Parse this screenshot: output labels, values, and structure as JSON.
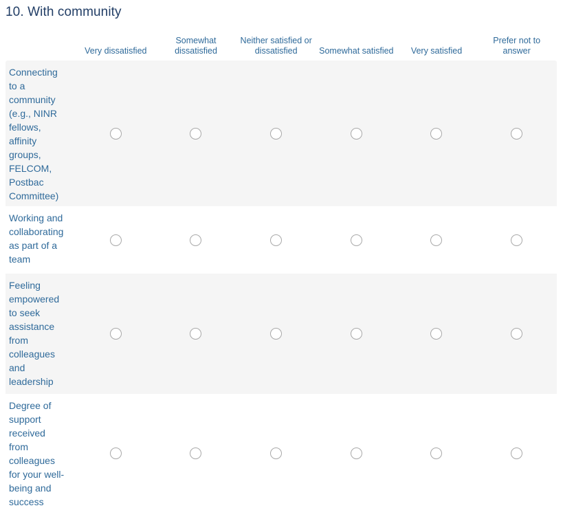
{
  "page": {
    "title": "10. With community"
  },
  "colors": {
    "page_bg": "#ffffff",
    "title_text": "#223e66",
    "cell_text": "#2f6a9a",
    "row_alt_bg": "#f5f5f5",
    "radio_border": "#a8a8a8",
    "radio_fill": "#ffffff"
  },
  "table": {
    "columns": [
      {
        "label": "Very dissatisfied"
      },
      {
        "label": "Somewhat\ndissatisfied"
      },
      {
        "label": "Neither satisfied or\ndissatisfied"
      },
      {
        "label": "Somewhat satisfied"
      },
      {
        "label": "Very satisfied"
      },
      {
        "label": "Prefer not to\nanswer"
      }
    ],
    "rows": [
      {
        "label": "Connecting\nto a\ncommunity\n(e.g., NINR\nfellows,\naffinity\ngroups,\nFELCOM,\nPostbac\nCommittee)",
        "selected": null
      },
      {
        "label": "Working and\ncollaborating\nas part of a\nteam",
        "selected": null
      },
      {
        "label": "Feeling\nempowered\nto seek\nassistance\nfrom\ncolleagues\nand\nleadership",
        "selected": null
      },
      {
        "label": "Degree of\nsupport\nreceived\nfrom\ncolleagues\nfor your well-\nbeing and\nsuccess",
        "selected": null
      }
    ]
  }
}
